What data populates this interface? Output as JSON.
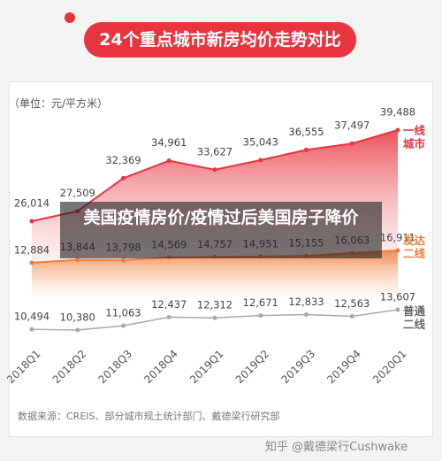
{
  "chart_data": {
    "type": "area",
    "title": "24个重点城市新房均价走势对比",
    "unit_label": "（单位：元/平方米）",
    "categories": [
      "2018Q1",
      "2018Q2",
      "2018Q3",
      "2018Q4",
      "2019Q1",
      "2019Q2",
      "2019Q3",
      "2019Q4",
      "2020Q1"
    ],
    "series": [
      {
        "name": "一线城市",
        "color": "#e8343f",
        "fill": true,
        "values": [
          26014,
          27509,
          32369,
          34961,
          33627,
          35043,
          36555,
          37497,
          39488
        ],
        "value_labels": [
          "26,014",
          "27,509",
          "32,369",
          "34,961",
          "33,627",
          "35,043",
          "36,555",
          "37,497",
          "39,488"
        ]
      },
      {
        "name": "发达二线",
        "color": "#f07c3a",
        "fill": true,
        "values": [
          12884,
          13844,
          13798,
          14569,
          14757,
          14951,
          15155,
          16063,
          16911
        ],
        "value_labels": [
          "12,884",
          "13,844",
          "13,798",
          "14,569",
          "14,757",
          "14,951",
          "15,155",
          "16,063",
          "16,911"
        ]
      },
      {
        "name": "普通二线",
        "color": "#a9a9a9",
        "fill": false,
        "values": [
          10494,
          10380,
          11063,
          12437,
          12312,
          12671,
          12833,
          12563,
          13607
        ],
        "value_labels": [
          "10,494",
          "10,380",
          "11,063",
          "12,437",
          "12,312",
          "12,671",
          "12,833",
          "12,563",
          "13,607"
        ]
      }
    ],
    "source": "数据来源：CREIS、部分城市规土统计部门、戴德梁行研究部",
    "watermark": "知乎 @戴德梁行Cushwake",
    "overlay_caption": "美国疫情房价/疫情过后美国房子降价"
  }
}
